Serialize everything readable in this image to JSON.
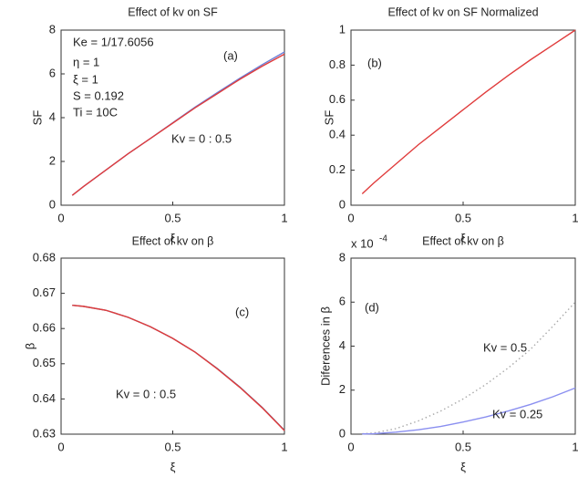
{
  "chart_data": [
    {
      "type": "line",
      "title": "Effect of kv on SF",
      "xlabel": "ξ",
      "ylabel": "SF",
      "x": [
        0.05,
        0.1,
        0.2,
        0.3,
        0.4,
        0.5,
        0.6,
        0.7,
        0.8,
        0.9,
        1
      ],
      "series": [
        {
          "color": "#6b7fd7",
          "values": [
            0.45,
            0.85,
            1.6,
            2.35,
            3.05,
            3.77,
            4.48,
            5.15,
            5.8,
            6.42,
            7.0
          ]
        },
        {
          "color": "#e03c3c",
          "values": [
            0.45,
            0.85,
            1.6,
            2.35,
            3.05,
            3.75,
            4.45,
            5.1,
            5.75,
            6.35,
            6.9
          ]
        }
      ],
      "xlim": [
        0,
        1
      ],
      "xticks": [
        0,
        0.5,
        1
      ],
      "ylim": [
        0,
        8
      ],
      "yticks": [
        0,
        2,
        4,
        6,
        8
      ],
      "annotations": [
        "Ke = 1/17.6056",
        "η = 1",
        "ξ = 1",
        "S = 0.192",
        "Ti = 10C",
        "(a)",
        "Kv = 0 : 0.5"
      ]
    },
    {
      "type": "line",
      "title": "Effect of kv on SF Normalized",
      "xlabel": "ξ",
      "ylabel": "SF",
      "x": [
        0.05,
        0.1,
        0.2,
        0.3,
        0.4,
        0.5,
        0.6,
        0.7,
        0.8,
        0.9,
        1
      ],
      "series": [
        {
          "color": "#e03c3c",
          "values": [
            0.065,
            0.125,
            0.235,
            0.345,
            0.445,
            0.545,
            0.645,
            0.74,
            0.83,
            0.915,
            1
          ]
        }
      ],
      "xlim": [
        0,
        1
      ],
      "xticks": [
        0,
        0.5,
        1
      ],
      "ylim": [
        0,
        1
      ],
      "yticks": [
        0,
        0.2,
        0.4,
        0.6,
        0.8,
        1
      ],
      "annotations": [
        "(b)"
      ]
    },
    {
      "type": "line",
      "title": "Effect of kv on β",
      "xlabel": "ξ",
      "ylabel": "β",
      "x": [
        0.05,
        0.1,
        0.2,
        0.3,
        0.4,
        0.5,
        0.6,
        0.7,
        0.8,
        0.9,
        1
      ],
      "series": [
        {
          "color": "#5a5a8a",
          "values": [
            0.6666,
            0.6663,
            0.6652,
            0.6632,
            0.6605,
            0.6572,
            0.6533,
            0.6486,
            0.6434,
            0.6376,
            0.6311
          ]
        },
        {
          "color": "#e03c3c",
          "values": [
            0.6666,
            0.6663,
            0.6652,
            0.6632,
            0.6605,
            0.6572,
            0.6533,
            0.6485,
            0.6433,
            0.6375,
            0.631
          ]
        }
      ],
      "xlim": [
        0,
        1
      ],
      "xticks": [
        0,
        0.5,
        1
      ],
      "ylim": [
        0.63,
        0.68
      ],
      "yticks": [
        0.63,
        0.64,
        0.65,
        0.66,
        0.67,
        0.68
      ],
      "annotations": [
        "(c)",
        "Kv = 0 : 0.5"
      ]
    },
    {
      "type": "line",
      "title": "Effect of kv on β",
      "xlabel": "ξ",
      "ylabel": "Diferences in β",
      "y_multiplier": "x 10",
      "y_exponent": "-4",
      "x": [
        0.05,
        0.1,
        0.2,
        0.3,
        0.4,
        0.5,
        0.6,
        0.7,
        0.8,
        0.9,
        1
      ],
      "series": [
        {
          "color": "#aaaaaa",
          "dash": "dotted",
          "values": [
            0.02,
            0.05,
            0.25,
            0.6,
            1.05,
            1.6,
            2.25,
            3.0,
            3.85,
            4.9,
            6.0
          ]
        },
        {
          "color": "#8a8ff0",
          "values": [
            0.01,
            0.02,
            0.09,
            0.2,
            0.35,
            0.55,
            0.78,
            1.05,
            1.35,
            1.7,
            2.1
          ]
        }
      ],
      "xlim": [
        0,
        1
      ],
      "xticks": [
        0,
        0.5,
        1
      ],
      "ylim": [
        0,
        8
      ],
      "yticks": [
        0,
        2,
        4,
        6,
        8
      ],
      "annotations": [
        "(d)",
        "Kv = 0.5",
        "Kv = 0.25"
      ]
    }
  ]
}
